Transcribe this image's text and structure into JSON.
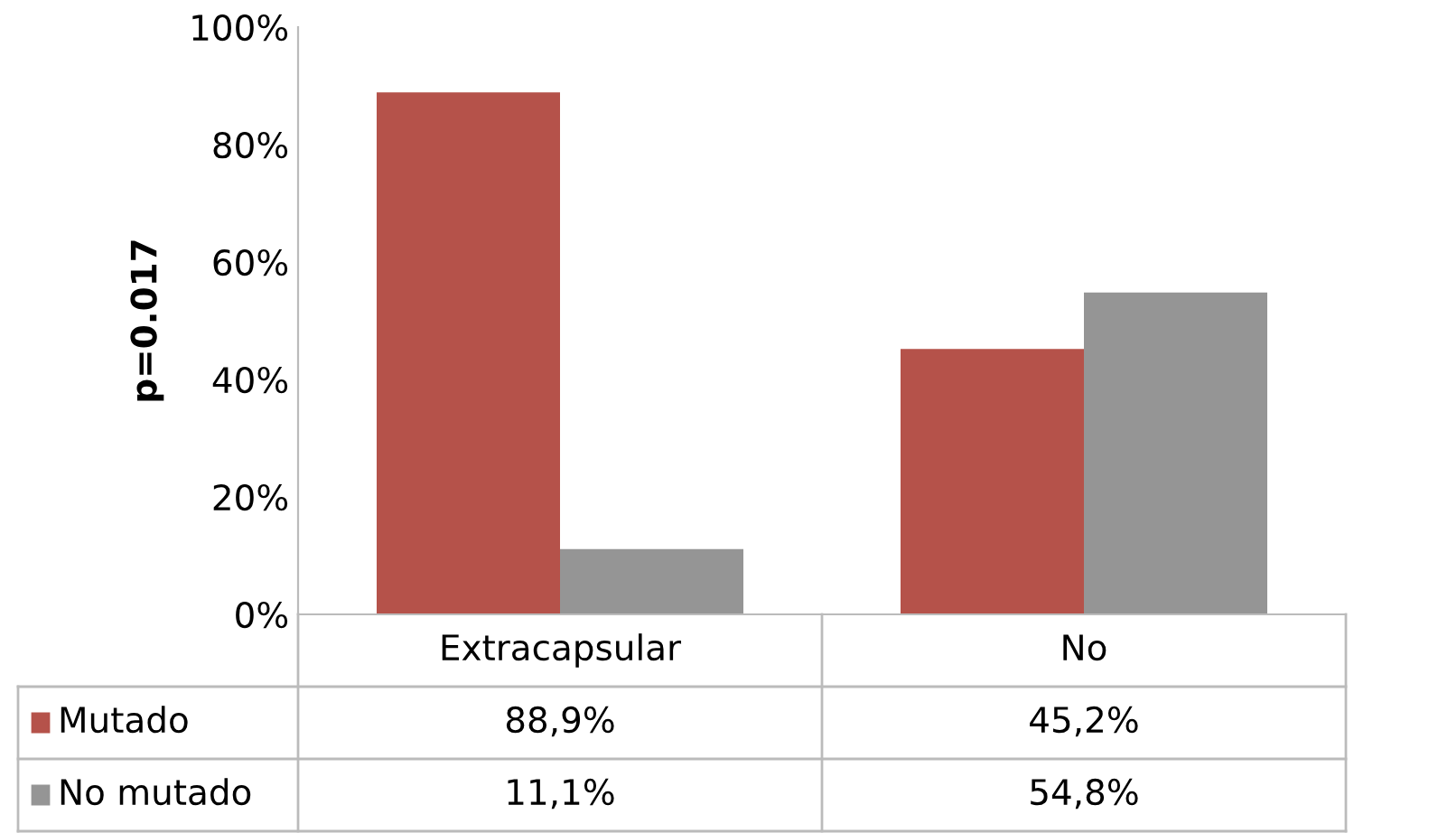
{
  "chart_data": {
    "type": "bar",
    "ylabel": "p=0.017",
    "categories": [
      "Extracapsular",
      "No"
    ],
    "series": [
      {
        "name": "Mutado",
        "color": "#b5524a",
        "values": [
          88.9,
          45.2
        ],
        "value_labels": [
          "88,9%",
          "45,2%"
        ]
      },
      {
        "name": "No mutado",
        "color": "#959595",
        "values": [
          11.1,
          54.8
        ],
        "value_labels": [
          "11,1%",
          "54,8%"
        ]
      }
    ],
    "ylim": [
      0,
      100
    ],
    "yticks": [
      {
        "value": 0,
        "label": "0%"
      },
      {
        "value": 20,
        "label": "20%"
      },
      {
        "value": 40,
        "label": "40%"
      },
      {
        "value": 60,
        "label": "60%"
      },
      {
        "value": 80,
        "label": "80%"
      },
      {
        "value": 100,
        "label": "100%"
      }
    ],
    "grid": false,
    "legend": "bottom"
  }
}
